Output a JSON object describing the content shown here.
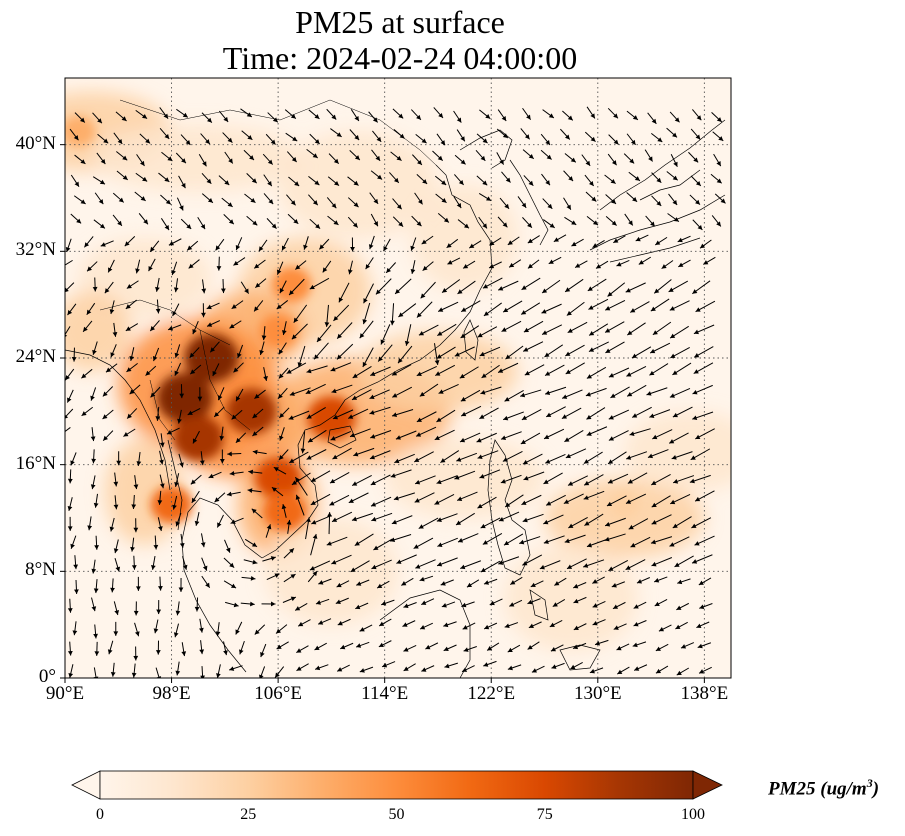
{
  "title_line1": "PM25 at surface",
  "title_line2": "Time: 2024-02-24 04:00:00",
  "map": {
    "lon_range": [
      90,
      140
    ],
    "lat_range": [
      0,
      45
    ],
    "x_ticks": [
      {
        "value": 90,
        "label": "90°E"
      },
      {
        "value": 98,
        "label": "98°E"
      },
      {
        "value": 106,
        "label": "106°E"
      },
      {
        "value": 114,
        "label": "114°E"
      },
      {
        "value": 122,
        "label": "122°E"
      },
      {
        "value": 130,
        "label": "130°E"
      },
      {
        "value": 138,
        "label": "138°E"
      }
    ],
    "y_ticks": [
      {
        "value": 0,
        "label": "0°"
      },
      {
        "value": 8,
        "label": "8°N"
      },
      {
        "value": 16,
        "label": "16°N"
      },
      {
        "value": 24,
        "label": "24°N"
      },
      {
        "value": 32,
        "label": "32°N"
      },
      {
        "value": 40,
        "label": "40°N"
      }
    ],
    "gridlines": "dotted",
    "field": "PM25 concentration (filled contours) with wind vectors"
  },
  "colorbar": {
    "label": "PM25 (ug/m",
    "label_sup": "3",
    "label_end": ")",
    "min": 0,
    "max": 100,
    "ticks": [
      "0",
      "25",
      "50",
      "75",
      "100"
    ],
    "extend": "both",
    "colors": [
      "#fff5eb",
      "#fee6ce",
      "#fdd0a2",
      "#fdae6b",
      "#fd8d3c",
      "#f16913",
      "#d94801",
      "#a63603",
      "#7f2704"
    ]
  },
  "chart_data": {
    "type": "heatmap",
    "title": "PM25 at surface\nTime: 2024-02-24 04:00:00",
    "xlim": [
      90,
      140
    ],
    "ylim": [
      0,
      45
    ],
    "zlim": [
      0,
      100
    ],
    "hotspots": [
      {
        "lon": 91,
        "lat": 41,
        "value": 40
      },
      {
        "lon": 99,
        "lat": 21,
        "value": 100
      },
      {
        "lon": 101,
        "lat": 24,
        "value": 95
      },
      {
        "lon": 104,
        "lat": 20,
        "value": 85
      },
      {
        "lon": 100,
        "lat": 18,
        "value": 85
      },
      {
        "lon": 106,
        "lat": 26,
        "value": 50
      },
      {
        "lon": 107,
        "lat": 29.5,
        "value": 55
      },
      {
        "lon": 110,
        "lat": 19.5,
        "value": 80
      },
      {
        "lon": 106,
        "lat": 15,
        "value": 75
      },
      {
        "lon": 106.5,
        "lat": 12.5,
        "value": 65
      },
      {
        "lon": 98,
        "lat": 13,
        "value": 60
      },
      {
        "lon": 132,
        "lat": 13,
        "value": 25
      }
    ]
  }
}
